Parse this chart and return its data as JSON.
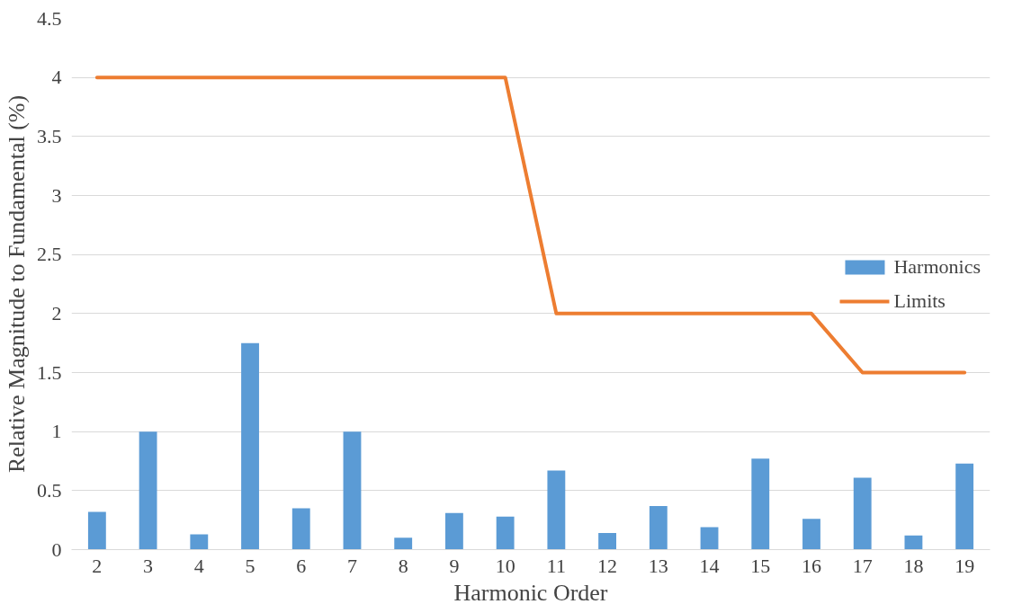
{
  "chart_data": {
    "type": "bar",
    "xlabel": "Harmonic Order",
    "ylabel": "Relative Magnitude to Fundamental (%)",
    "categories": [
      "2",
      "3",
      "4",
      "5",
      "6",
      "7",
      "8",
      "9",
      "10",
      "11",
      "12",
      "13",
      "14",
      "15",
      "16",
      "17",
      "18",
      "19"
    ],
    "series": [
      {
        "name": "Harmonics",
        "color": "#5b9bd5",
        "values": [
          0.32,
          1.0,
          0.13,
          1.75,
          0.35,
          1.0,
          0.1,
          0.31,
          0.28,
          0.67,
          0.14,
          0.37,
          0.19,
          0.77,
          0.26,
          0.61,
          0.12,
          0.73
        ]
      },
      {
        "name": "Limits",
        "type": "line",
        "color": "#ed7d31",
        "values": [
          4,
          4,
          4,
          4,
          4,
          4,
          4,
          4,
          4,
          2,
          2,
          2,
          2,
          2,
          2,
          1.5,
          1.5,
          1.5
        ]
      }
    ],
    "ylim": [
      0,
      4.5
    ],
    "yticks": [
      0,
      0.5,
      1,
      1.5,
      2,
      2.5,
      3,
      3.5,
      4,
      4.5
    ],
    "grid": "y",
    "legend": "right"
  }
}
